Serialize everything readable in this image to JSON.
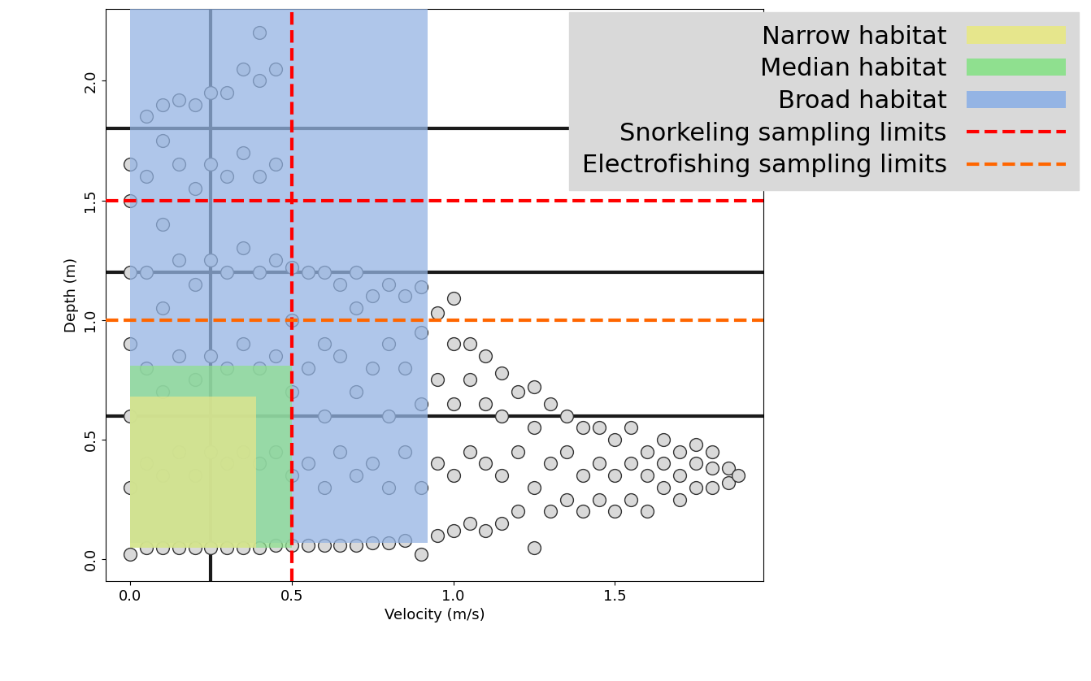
{
  "chart_data": {
    "type": "scatter",
    "x_label": "Velocity (m/s)",
    "y_label": "Depth (m)",
    "xlim": [
      -0.075,
      1.96
    ],
    "ylim": [
      -0.09,
      2.3
    ],
    "xticks": [
      {
        "value": 0,
        "label": "0.0"
      },
      {
        "value": 0.5,
        "label": "0.5"
      },
      {
        "value": 1,
        "label": "1.0"
      },
      {
        "value": 1.5,
        "label": "1.5"
      }
    ],
    "yticks": [
      {
        "value": 0,
        "label": "0.0"
      },
      {
        "value": 0.5,
        "label": "0.5"
      },
      {
        "value": 1,
        "label": "1.0"
      },
      {
        "value": 1.5,
        "label": "1.5"
      },
      {
        "value": 2,
        "label": "2.0"
      }
    ],
    "legend": "upper right",
    "color": "#d9d9d9",
    "marker": "circle",
    "x": [
      0.0,
      0.0,
      0.0,
      0.0,
      0.0,
      0.0,
      0.0,
      0.05,
      0.05,
      0.05,
      0.05,
      0.05,
      0.05,
      0.1,
      0.1,
      0.1,
      0.1,
      0.1,
      0.1,
      0.1,
      0.15,
      0.15,
      0.15,
      0.15,
      0.15,
      0.15,
      0.2,
      0.2,
      0.2,
      0.2,
      0.2,
      0.2,
      0.25,
      0.25,
      0.25,
      0.25,
      0.25,
      0.25,
      0.3,
      0.3,
      0.3,
      0.3,
      0.3,
      0.3,
      0.35,
      0.35,
      0.35,
      0.35,
      0.35,
      0.35,
      0.4,
      0.4,
      0.4,
      0.4,
      0.4,
      0.4,
      0.4,
      0.45,
      0.45,
      0.45,
      0.45,
      0.45,
      0.45,
      0.5,
      0.5,
      0.5,
      0.5,
      0.5,
      0.55,
      0.55,
      0.55,
      0.55,
      0.6,
      0.6,
      0.6,
      0.6,
      0.6,
      0.65,
      0.65,
      0.65,
      0.65,
      0.7,
      0.7,
      0.7,
      0.7,
      0.7,
      0.75,
      0.75,
      0.75,
      0.75,
      0.8,
      0.8,
      0.8,
      0.8,
      0.8,
      0.85,
      0.85,
      0.85,
      0.85,
      0.9,
      0.9,
      0.9,
      0.9,
      0.9,
      0.95,
      0.95,
      0.95,
      0.95,
      1.0,
      1.0,
      1.0,
      1.0,
      1.0,
      1.05,
      1.05,
      1.05,
      1.05,
      1.1,
      1.1,
      1.1,
      1.1,
      1.15,
      1.15,
      1.15,
      1.15,
      1.2,
      1.2,
      1.2,
      1.25,
      1.25,
      1.25,
      1.25,
      1.3,
      1.3,
      1.3,
      1.35,
      1.35,
      1.35,
      1.4,
      1.4,
      1.4,
      1.45,
      1.45,
      1.45,
      1.5,
      1.5,
      1.5,
      1.55,
      1.55,
      1.55,
      1.6,
      1.6,
      1.6,
      1.65,
      1.65,
      1.65,
      1.7,
      1.7,
      1.7,
      1.75,
      1.75,
      1.75,
      1.8,
      1.8,
      1.8,
      1.85,
      1.85,
      1.88
    ],
    "values": [
      0.02,
      0.3,
      0.6,
      0.9,
      1.2,
      1.5,
      1.65,
      0.05,
      0.4,
      0.8,
      1.2,
      1.6,
      1.85,
      0.05,
      0.35,
      0.7,
      1.05,
      1.4,
      1.75,
      1.9,
      0.05,
      0.45,
      0.85,
      1.25,
      1.65,
      1.92,
      0.05,
      0.35,
      0.75,
      1.15,
      1.55,
      1.9,
      0.05,
      0.45,
      0.85,
      1.25,
      1.65,
      1.95,
      0.05,
      0.4,
      0.8,
      1.2,
      1.6,
      1.95,
      0.05,
      0.45,
      0.9,
      1.3,
      1.7,
      2.05,
      0.05,
      0.4,
      0.8,
      1.2,
      1.6,
      2.0,
      2.2,
      0.06,
      0.45,
      0.85,
      1.25,
      1.65,
      2.05,
      0.06,
      0.35,
      0.7,
      1.0,
      1.22,
      0.06,
      0.4,
      0.8,
      1.2,
      0.06,
      0.3,
      0.6,
      0.9,
      1.2,
      0.06,
      0.45,
      0.85,
      1.15,
      0.06,
      0.35,
      0.7,
      1.05,
      1.2,
      0.07,
      0.4,
      0.8,
      1.1,
      0.07,
      0.3,
      0.6,
      0.9,
      1.15,
      0.08,
      0.45,
      0.8,
      1.1,
      0.02,
      0.3,
      0.65,
      0.95,
      1.14,
      0.1,
      0.4,
      0.75,
      1.03,
      0.12,
      0.35,
      0.65,
      0.9,
      1.09,
      0.15,
      0.45,
      0.75,
      0.9,
      0.12,
      0.4,
      0.65,
      0.85,
      0.15,
      0.35,
      0.6,
      0.78,
      0.2,
      0.45,
      0.7,
      0.05,
      0.3,
      0.55,
      0.72,
      0.2,
      0.4,
      0.65,
      0.25,
      0.45,
      0.6,
      0.2,
      0.35,
      0.55,
      0.25,
      0.4,
      0.55,
      0.2,
      0.35,
      0.5,
      0.25,
      0.4,
      0.55,
      0.2,
      0.35,
      0.45,
      0.3,
      0.4,
      0.5,
      0.25,
      0.35,
      0.45,
      0.3,
      0.4,
      0.48,
      0.3,
      0.38,
      0.45,
      0.32,
      0.38,
      0.35
    ],
    "regions": [
      {
        "name": "Narrow habitat",
        "color": "#e6e68c",
        "x": [
          0,
          0.39
        ],
        "y": [
          0.05,
          0.68
        ]
      },
      {
        "name": "Median habitat",
        "color": "#8fe08f",
        "x": [
          0,
          0.5
        ],
        "y": [
          0.05,
          0.81
        ]
      },
      {
        "name": "Broad habitat",
        "color": "#94b4e4",
        "x": [
          0,
          0.92
        ],
        "y": [
          0.07,
          2.3
        ]
      }
    ],
    "limits": [
      {
        "name": "Snorkeling sampling limits",
        "color": "#ff0000",
        "line_style": "dashed",
        "x": [
          0.5
        ],
        "y": [
          1.5
        ]
      },
      {
        "name": "Electrofishing sampling limits",
        "color": "#ff6600",
        "line_style": "dashed",
        "x": [],
        "y": [
          1.0
        ]
      }
    ],
    "reference_lines": {
      "color": "#1a1a1a",
      "line_style": "solid",
      "x": [
        0.25
      ],
      "y": [
        0.6,
        1.2,
        1.8
      ]
    }
  }
}
